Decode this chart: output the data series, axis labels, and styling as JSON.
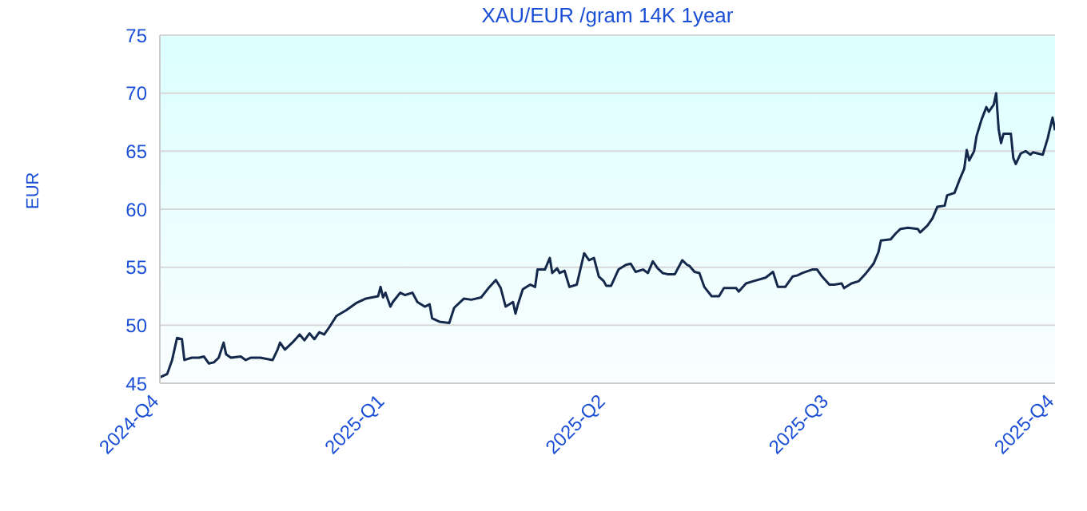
{
  "chart_data": {
    "type": "line",
    "title": "XAU/EUR /gram 14K 1year",
    "ylabel": "EUR",
    "x": [
      "2024-10-01",
      "2024-10-04",
      "2024-10-06",
      "2024-10-08",
      "2024-10-10",
      "2024-10-11",
      "2024-10-14",
      "2024-10-17",
      "2024-10-19",
      "2024-10-21",
      "2024-10-23",
      "2024-10-25",
      "2024-10-27",
      "2024-10-28",
      "2024-10-30",
      "2024-11-03",
      "2024-11-05",
      "2024-11-07",
      "2024-11-11",
      "2024-11-16",
      "2024-11-18",
      "2024-11-19",
      "2024-11-21",
      "2024-11-24",
      "2024-11-27",
      "2024-11-29",
      "2024-12-01",
      "2024-12-03",
      "2024-12-05",
      "2024-12-07",
      "2024-12-09",
      "2024-12-12",
      "2024-12-16",
      "2024-12-20",
      "2024-12-24",
      "2024-12-29",
      "2024-12-30",
      "2024-12-31",
      "2025-01-01",
      "2025-01-03",
      "2025-01-04",
      "2025-01-07",
      "2025-01-09",
      "2025-01-12",
      "2025-01-14",
      "2025-01-17",
      "2025-01-19",
      "2025-01-20",
      "2025-01-23",
      "2025-01-27",
      "2025-01-29",
      "2025-02-02",
      "2025-02-05",
      "2025-02-09",
      "2025-02-12",
      "2025-02-15",
      "2025-02-17",
      "2025-02-19",
      "2025-02-22",
      "2025-02-23",
      "2025-02-24",
      "2025-02-26",
      "2025-03-01",
      "2025-03-03",
      "2025-03-04",
      "2025-03-07",
      "2025-03-09",
      "2025-03-10",
      "2025-03-12",
      "2025-03-13",
      "2025-03-15",
      "2025-03-17",
      "2025-03-20",
      "2025-03-23",
      "2025-03-25",
      "2025-03-27",
      "2025-03-29",
      "2025-03-31",
      "2025-04-01",
      "2025-04-03",
      "2025-04-06",
      "2025-04-09",
      "2025-04-11",
      "2025-04-13",
      "2025-04-16",
      "2025-04-18",
      "2025-04-20",
      "2025-04-22",
      "2025-04-24",
      "2025-04-26",
      "2025-04-29",
      "2025-05-02",
      "2025-05-04",
      "2025-05-05",
      "2025-05-07",
      "2025-05-09",
      "2025-05-11",
      "2025-05-14",
      "2025-05-17",
      "2025-05-19",
      "2025-05-21",
      "2025-05-24",
      "2025-05-25",
      "2025-05-28",
      "2025-05-31",
      "2025-06-05",
      "2025-06-08",
      "2025-06-10",
      "2025-06-13",
      "2025-06-16",
      "2025-06-18",
      "2025-06-20",
      "2025-06-24",
      "2025-06-26",
      "2025-06-28",
      "2025-07-01",
      "2025-07-03",
      "2025-07-06",
      "2025-07-07",
      "2025-07-10",
      "2025-07-13",
      "2025-07-16",
      "2025-07-19",
      "2025-07-21",
      "2025-07-22",
      "2025-07-26",
      "2025-07-28",
      "2025-07-30",
      "2025-08-02",
      "2025-08-06",
      "2025-08-07",
      "2025-08-10",
      "2025-08-12",
      "2025-08-14",
      "2025-08-17",
      "2025-08-18",
      "2025-08-21",
      "2025-08-23",
      "2025-08-25",
      "2025-08-26",
      "2025-08-27",
      "2025-08-29",
      "2025-08-30",
      "2025-09-01",
      "2025-09-03",
      "2025-09-04",
      "2025-09-06",
      "2025-09-07",
      "2025-09-08",
      "2025-09-09",
      "2025-09-10",
      "2025-09-13",
      "2025-09-14",
      "2025-09-15",
      "2025-09-17",
      "2025-09-19",
      "2025-09-21",
      "2025-09-22",
      "2025-09-24",
      "2025-09-26",
      "2025-09-28",
      "2025-09-30",
      "2025-10-01"
    ],
    "series": [
      {
        "color": "#14284b",
        "values": [
          45.5,
          45.8,
          47,
          48.9,
          48.8,
          47,
          47.2,
          47.2,
          47.3,
          46.7,
          46.8,
          47.2,
          48.5,
          47.5,
          47.2,
          47.3,
          47,
          47.2,
          47.2,
          47,
          47.9,
          48.5,
          47.9,
          48.5,
          49.2,
          48.7,
          49.3,
          48.8,
          49.4,
          49.2,
          49.8,
          50.8,
          51.3,
          51.9,
          52.3,
          52.5,
          53.3,
          52.4,
          52.8,
          51.6,
          52,
          52.8,
          52.6,
          52.8,
          52,
          51.6,
          51.8,
          50.6,
          50.3,
          50.2,
          51.5,
          52.3,
          52.2,
          52.4,
          53.2,
          53.9,
          53.2,
          51.6,
          52,
          51,
          51.8,
          53.1,
          53.5,
          53.3,
          54.8,
          54.8,
          55.8,
          54.5,
          54.9,
          54.5,
          54.7,
          53.3,
          53.5,
          56.2,
          55.6,
          55.8,
          54.2,
          53.8,
          53.4,
          53.4,
          54.8,
          55.2,
          55.3,
          54.6,
          54.8,
          54.5,
          55.5,
          54.9,
          54.5,
          54.4,
          54.4,
          55.6,
          55.2,
          55.1,
          54.6,
          54.5,
          53.3,
          52.5,
          52.5,
          53.2,
          53.2,
          53.2,
          52.9,
          53.6,
          53.8,
          54.1,
          54.6,
          53.3,
          53.3,
          54.2,
          54.3,
          54.5,
          54.8,
          54.8,
          54.2,
          53.5,
          53.5,
          53.6,
          53.2,
          53.6,
          53.8,
          54.5,
          55.3,
          56.3,
          57.3,
          57.4,
          57.9,
          58.3,
          58.4,
          58.3,
          58,
          58.6,
          59.2,
          60.2,
          60.3,
          61.2,
          61.4,
          62.5,
          63.5,
          65.1,
          64.2,
          65,
          66.3,
          67.7,
          68.8,
          68.4,
          69,
          70,
          66.9,
          65.7,
          66.5,
          66.5,
          64.4,
          63.9,
          64.8,
          65,
          64.7,
          64.9,
          64.8,
          64.7,
          66.1,
          67.9,
          66.8
        ]
      }
    ],
    "xlim": [
      "2024-10-01",
      "2025-10-01"
    ],
    "xticks": [
      {
        "value": "2024-10-01",
        "label": "2024-Q4"
      },
      {
        "value": "2025-01-01",
        "label": "2025-Q1"
      },
      {
        "value": "2025-04-01",
        "label": "2025-Q2"
      },
      {
        "value": "2025-07-01",
        "label": "2025-Q3"
      },
      {
        "value": "2025-10-01",
        "label": "2025-Q4"
      }
    ],
    "ylim": [
      45,
      75
    ],
    "yticks": [
      45,
      50,
      55,
      60,
      65,
      70,
      75
    ],
    "grid": "y",
    "marker": "none",
    "line_style": "solid"
  }
}
